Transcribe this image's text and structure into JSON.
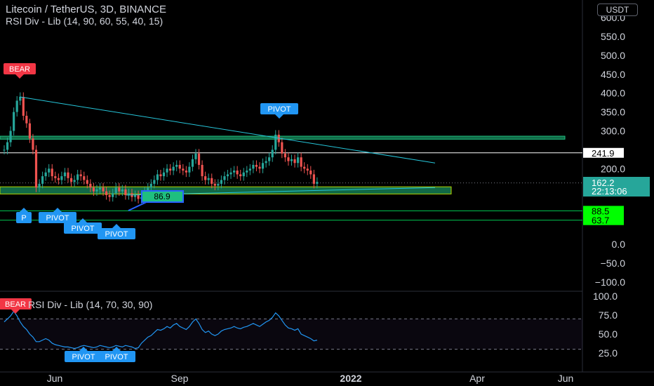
{
  "header": {
    "title": "Litecoin / TetherUS, 3D, BINANCE",
    "indicator": "RSI Div - Lib (14, 90, 60, 55, 40, 15)",
    "rsi_indicator": "RSI Div - Lib (14, 70, 30, 90)"
  },
  "currency_button": "USDT",
  "colors": {
    "background": "#000000",
    "up": "#26a69a",
    "down": "#ef5350",
    "zone": "#1fbf7f",
    "support_line": "#00c853",
    "pivot": "#2196f3",
    "bear": "#f23645",
    "rsi_line": "#2196f3",
    "trendline": "#26c6da"
  },
  "chart_data": [
    {
      "type": "candlestick",
      "title": "Litecoin / TetherUS, 3D, BINANCE",
      "yaxis": {
        "ticks": [
          "600.0",
          "550.0",
          "500.0",
          "450.0",
          "400.0",
          "350.0",
          "300.0",
          "200.0",
          "0.0",
          "−50.0",
          "−100.0"
        ],
        "tick_values": [
          600,
          550,
          500,
          450,
          400,
          350,
          300,
          200,
          0,
          -50,
          -100
        ],
        "range": [
          -115,
          625
        ]
      },
      "xaxis": {
        "ticks": [
          "Jun",
          "Sep",
          "2022",
          "Apr",
          "Jun"
        ]
      },
      "series": {
        "close": [
          250,
          270,
          300,
          350,
          380,
          390,
          340,
          320,
          280,
          250,
          150,
          160,
          180,
          190,
          200,
          180,
          175,
          170,
          180,
          190,
          175,
          165,
          170,
          185,
          180,
          170,
          160,
          150,
          140,
          145,
          150,
          140,
          130,
          125,
          135,
          150,
          140,
          145,
          130,
          135,
          125,
          130,
          120,
          125,
          140,
          150,
          160,
          170,
          185,
          180,
          190,
          200,
          195,
          205,
          210,
          200,
          195,
          190,
          205,
          225,
          240,
          210,
          180,
          170,
          175,
          160,
          155,
          160,
          170,
          180,
          185,
          190,
          195,
          185,
          180,
          190,
          195,
          200,
          210,
          205,
          200,
          215,
          220,
          230,
          250,
          290,
          270,
          240,
          230,
          220,
          225,
          215,
          230,
          205,
          200,
          195,
          185,
          160,
          165
        ],
        "candles_note": "Approximate 3-day OHLC candles read from chart"
      },
      "horizontal_levels": [
        {
          "label": "241.9",
          "value": 241.9,
          "color": "#ffffff"
        },
        {
          "label": "88.5",
          "value": 88.5,
          "color": "#00c853"
        },
        {
          "label": "63.7",
          "value": 63.7,
          "color": "#00c853"
        }
      ],
      "zones": [
        {
          "from": 278,
          "to": 286
        },
        {
          "from": 133,
          "to": 152
        }
      ],
      "price_label": {
        "value": "162.2",
        "countdown": "22:13:06"
      },
      "annotations": [
        {
          "text": "BEAR",
          "kind": "bear"
        },
        {
          "text": "PIVOT",
          "kind": "pivot"
        },
        {
          "text": "PIVOT",
          "kind": "pivot"
        },
        {
          "text": "PIVOT",
          "kind": "pivot"
        },
        {
          "text": "PIVOT",
          "kind": "pivot"
        },
        {
          "text": "P",
          "kind": "pivot"
        },
        {
          "text": "86.9",
          "kind": "value-box"
        }
      ]
    },
    {
      "type": "line",
      "title": "RSI Div - Lib (14, 70, 30, 90)",
      "yaxis": {
        "ticks": [
          "100.0",
          "75.0",
          "50.0",
          "25.0"
        ],
        "tick_values": [
          100,
          75,
          50,
          25
        ],
        "range": [
          15,
          103
        ]
      },
      "levels": [
        70,
        30
      ],
      "values": [
        66,
        70,
        74,
        80,
        74,
        66,
        60,
        56,
        50,
        46,
        40,
        40,
        42,
        44,
        42,
        38,
        36,
        35,
        34,
        33,
        33,
        32,
        31,
        32,
        34,
        35,
        34,
        33,
        32,
        33,
        35,
        34,
        33,
        32,
        33,
        35,
        34,
        33,
        35,
        34,
        33,
        31,
        32,
        38,
        42,
        46,
        48,
        52,
        56,
        55,
        57,
        60,
        58,
        62,
        64,
        60,
        58,
        56,
        60,
        66,
        70,
        64,
        56,
        52,
        54,
        50,
        48,
        50,
        54,
        56,
        57,
        58,
        60,
        58,
        57,
        59,
        60,
        62,
        64,
        62,
        60,
        63,
        66,
        68,
        72,
        78,
        74,
        68,
        62,
        58,
        57,
        55,
        57,
        50,
        48,
        46,
        44,
        41,
        42
      ],
      "annotations": [
        {
          "text": "BEAR",
          "kind": "bear"
        },
        {
          "text": "PIVOT",
          "kind": "pivot"
        },
        {
          "text": "PIVOT",
          "kind": "pivot"
        }
      ]
    }
  ]
}
